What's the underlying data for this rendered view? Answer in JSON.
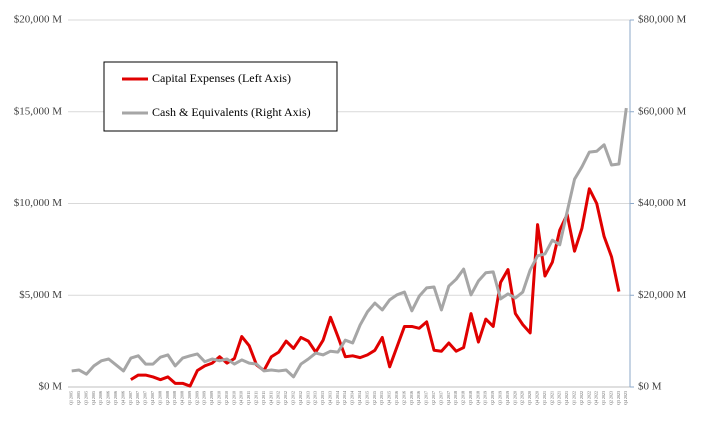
{
  "chart_data": {
    "type": "line",
    "categories": [
      "Q1 2005",
      "Q2 2005",
      "Q3 2005",
      "Q4 2005",
      "Q1 2006",
      "Q2 2006",
      "Q3 2006",
      "Q4 2006",
      "Q1 2007",
      "Q2 2007",
      "Q3 2007",
      "Q4 2007",
      "Q1 2008",
      "Q2 2008",
      "Q3 2008",
      "Q4 2008",
      "Q1 2009",
      "Q2 2009",
      "Q3 2009",
      "Q4 2009",
      "Q1 2010",
      "Q2 2010",
      "Q3 2010",
      "Q4 2010",
      "Q1 2011",
      "Q2 2011",
      "Q3 2011",
      "Q4 2011",
      "Q1 2012",
      "Q2 2012",
      "Q3 2012",
      "Q4 2012",
      "Q1 2013",
      "Q2 2013",
      "Q3 2013",
      "Q4 2013",
      "Q1 2014",
      "Q2 2014",
      "Q3 2014",
      "Q4 2014",
      "Q1 2015",
      "Q2 2015",
      "Q3 2015",
      "Q4 2015",
      "Q1 2016",
      "Q2 2016",
      "Q3 2016",
      "Q4 2016",
      "Q1 2017",
      "Q2 2017",
      "Q3 2017",
      "Q4 2017",
      "Q1 2018",
      "Q2 2018",
      "Q3 2018",
      "Q4 2018",
      "Q1 2019",
      "Q2 2019",
      "Q3 2019",
      "Q4 2019",
      "Q1 2020",
      "Q2 2020",
      "Q3 2020",
      "Q4 2020",
      "Q1 2021",
      "Q2 2021",
      "Q3 2021",
      "Q4 2021",
      "Q1 2022",
      "Q2 2022",
      "Q3 2022",
      "Q4 2022",
      "Q1 2023",
      "Q2 2023",
      "Q3 2023",
      "Q4 2023"
    ],
    "series": [
      {
        "name": "Capital Expenses (Left Axis)",
        "color": "#e00000",
        "axis": "y",
        "values": [
          null,
          null,
          null,
          null,
          null,
          null,
          null,
          null,
          400,
          650,
          650,
          550,
          400,
          550,
          200,
          200,
          50,
          900,
          1150,
          1300,
          1650,
          1300,
          1550,
          2750,
          2250,
          1200,
          900,
          1650,
          1900,
          2500,
          2100,
          2700,
          2500,
          1900,
          2550,
          3800,
          2750,
          1650,
          1700,
          1600,
          1750,
          2000,
          2700,
          1100,
          2200,
          3300,
          3300,
          3200,
          3550,
          2000,
          1950,
          2400,
          1950,
          2150,
          4000,
          2450,
          3700,
          3300,
          5700,
          6400,
          4000,
          3400,
          2950,
          8850,
          6050,
          6800,
          8550,
          9400,
          7400,
          8650,
          10800,
          10000,
          8200,
          7100,
          5200,
          null
        ]
      },
      {
        "name": "Cash & Equivalents (Right Axis)",
        "color": "#a6a6a6",
        "axis": "y2",
        "values": [
          3500,
          3700,
          2800,
          4600,
          5700,
          6100,
          4800,
          3500,
          6300,
          6800,
          5000,
          5000,
          6500,
          7000,
          4600,
          6300,
          6800,
          7200,
          5500,
          6100,
          5700,
          6100,
          5000,
          5900,
          5200,
          5000,
          3500,
          3700,
          3500,
          3700,
          2200,
          5000,
          6100,
          7400,
          7000,
          7800,
          7600,
          10200,
          9600,
          13500,
          16400,
          18300,
          16800,
          19000,
          20100,
          20700,
          16600,
          19800,
          21600,
          21800,
          16800,
          22000,
          23500,
          25700,
          20100,
          23100,
          24900,
          25100,
          19200,
          20300,
          19400,
          20700,
          25500,
          28600,
          29000,
          32000,
          31000,
          38200,
          45300,
          48000,
          51200,
          51400,
          52800,
          48400,
          48600,
          60800
        ]
      }
    ],
    "ylim": [
      0,
      20000
    ],
    "yticks": [
      {
        "value": 0,
        "label": "$0 M"
      },
      {
        "value": 5000,
        "label": "$5,000 M"
      },
      {
        "value": 10000,
        "label": "$10,000 M"
      },
      {
        "value": 15000,
        "label": "$15,000 M"
      },
      {
        "value": 20000,
        "label": "$20,000 M"
      }
    ],
    "y2lim": [
      0,
      80000
    ],
    "y2ticks": [
      {
        "value": 0,
        "label": "$0 M"
      },
      {
        "value": 20000,
        "label": "$20,000 M"
      },
      {
        "value": 40000,
        "label": "$40,000 M"
      },
      {
        "value": 60000,
        "label": "$60,000 M"
      },
      {
        "value": 80000,
        "label": "$80,000 M"
      }
    ],
    "grid": true,
    "legend": "upper left"
  }
}
